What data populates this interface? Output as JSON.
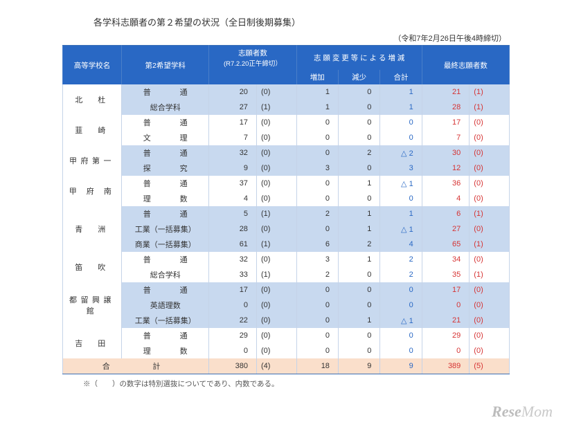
{
  "title": "各学科志願者の第２希望の状況（全日制後期募集）",
  "deadline": "（令和7年2月26日午後4時締切）",
  "headers": {
    "school": "高等学校名",
    "dept": "第2希望学科",
    "initial": "志願者数",
    "initial_sub": "(R7.2.20正午締切）",
    "change": "志 願 変 更 等 に よ る 増 減",
    "inc": "増加",
    "dec": "減少",
    "sum": "合計",
    "final": "最終志願者数"
  },
  "schools": [
    {
      "name": "北　杜",
      "rows": [
        {
          "dept": "普　通",
          "spread": true,
          "init": 20,
          "init_p": "(0)",
          "inc": 1,
          "dec": 0,
          "sum": "1",
          "final": 21,
          "final_p": "(1)"
        },
        {
          "dept": "総合学科",
          "init": 27,
          "init_p": "(1)",
          "inc": 1,
          "dec": 0,
          "sum": "1",
          "final": 28,
          "final_p": "(1)"
        }
      ]
    },
    {
      "name": "韮　崎",
      "rows": [
        {
          "dept": "普　通",
          "spread": true,
          "init": 17,
          "init_p": "(0)",
          "inc": 0,
          "dec": 0,
          "sum": "0",
          "final": 17,
          "final_p": "(0)"
        },
        {
          "dept": "文　理",
          "spread": true,
          "init": 7,
          "init_p": "(0)",
          "inc": 0,
          "dec": 0,
          "sum": "0",
          "final": 7,
          "final_p": "(0)"
        }
      ]
    },
    {
      "name": "甲府第一",
      "rows": [
        {
          "dept": "普　通",
          "spread": true,
          "init": 32,
          "init_p": "(0)",
          "inc": 0,
          "dec": 2,
          "sum": "△ 2",
          "final": 30,
          "final_p": "(0)"
        },
        {
          "dept": "探　究",
          "spread": true,
          "init": 9,
          "init_p": "(0)",
          "inc": 3,
          "dec": 0,
          "sum": "3",
          "final": 12,
          "final_p": "(0)"
        }
      ]
    },
    {
      "name": "甲 府 南",
      "rows": [
        {
          "dept": "普　通",
          "spread": true,
          "init": 37,
          "init_p": "(0)",
          "inc": 0,
          "dec": 1,
          "sum": "△ 1",
          "final": 36,
          "final_p": "(0)"
        },
        {
          "dept": "理　数",
          "spread": true,
          "init": 4,
          "init_p": "(0)",
          "inc": 0,
          "dec": 0,
          "sum": "0",
          "final": 4,
          "final_p": "(0)"
        }
      ]
    },
    {
      "name": "青　洲",
      "rows": [
        {
          "dept": "普　通",
          "spread": true,
          "init": 5,
          "init_p": "(1)",
          "inc": 2,
          "dec": 1,
          "sum": "1",
          "final": 6,
          "final_p": "(1)"
        },
        {
          "dept": "工業（一括募集）",
          "init": 28,
          "init_p": "(0)",
          "inc": 0,
          "dec": 1,
          "sum": "△ 1",
          "final": 27,
          "final_p": "(0)"
        },
        {
          "dept": "商業（一括募集）",
          "init": 61,
          "init_p": "(1)",
          "inc": 6,
          "dec": 2,
          "sum": "4",
          "final": 65,
          "final_p": "(1)"
        }
      ]
    },
    {
      "name": "笛　吹",
      "rows": [
        {
          "dept": "普　通",
          "spread": true,
          "init": 32,
          "init_p": "(0)",
          "inc": 3,
          "dec": 1,
          "sum": "2",
          "final": 34,
          "final_p": "(0)"
        },
        {
          "dept": "総合学科",
          "init": 33,
          "init_p": "(1)",
          "inc": 2,
          "dec": 0,
          "sum": "2",
          "final": 35,
          "final_p": "(1)"
        }
      ]
    },
    {
      "name": "都留興譲館",
      "rows": [
        {
          "dept": "普　通",
          "spread": true,
          "init": 17,
          "init_p": "(0)",
          "inc": 0,
          "dec": 0,
          "sum": "0",
          "final": 17,
          "final_p": "(0)"
        },
        {
          "dept": "英語理数",
          "init": 0,
          "init_p": "(0)",
          "inc": 0,
          "dec": 0,
          "sum": "0",
          "final": 0,
          "final_p": "(0)"
        },
        {
          "dept": "工業（一括募集）",
          "init": 22,
          "init_p": "(0)",
          "inc": 0,
          "dec": 1,
          "sum": "△ 1",
          "final": 21,
          "final_p": "(0)"
        }
      ]
    },
    {
      "name": "吉　田",
      "rows": [
        {
          "dept": "普　通",
          "spread": true,
          "init": 29,
          "init_p": "(0)",
          "inc": 0,
          "dec": 0,
          "sum": "0",
          "final": 29,
          "final_p": "(0)"
        },
        {
          "dept": "理　数",
          "spread": true,
          "init": 0,
          "init_p": "(0)",
          "inc": 0,
          "dec": 0,
          "sum": "0",
          "final": 0,
          "final_p": "(0)"
        }
      ]
    }
  ],
  "total": {
    "label": "合　　計",
    "init": 380,
    "init_p": "(4)",
    "inc": 18,
    "dec": 9,
    "sum": "9",
    "final": 389,
    "final_p": "(5)"
  },
  "footnote": "※（　　）の数字は特別選抜についてであり、内数である。",
  "logo": "ReseMom"
}
